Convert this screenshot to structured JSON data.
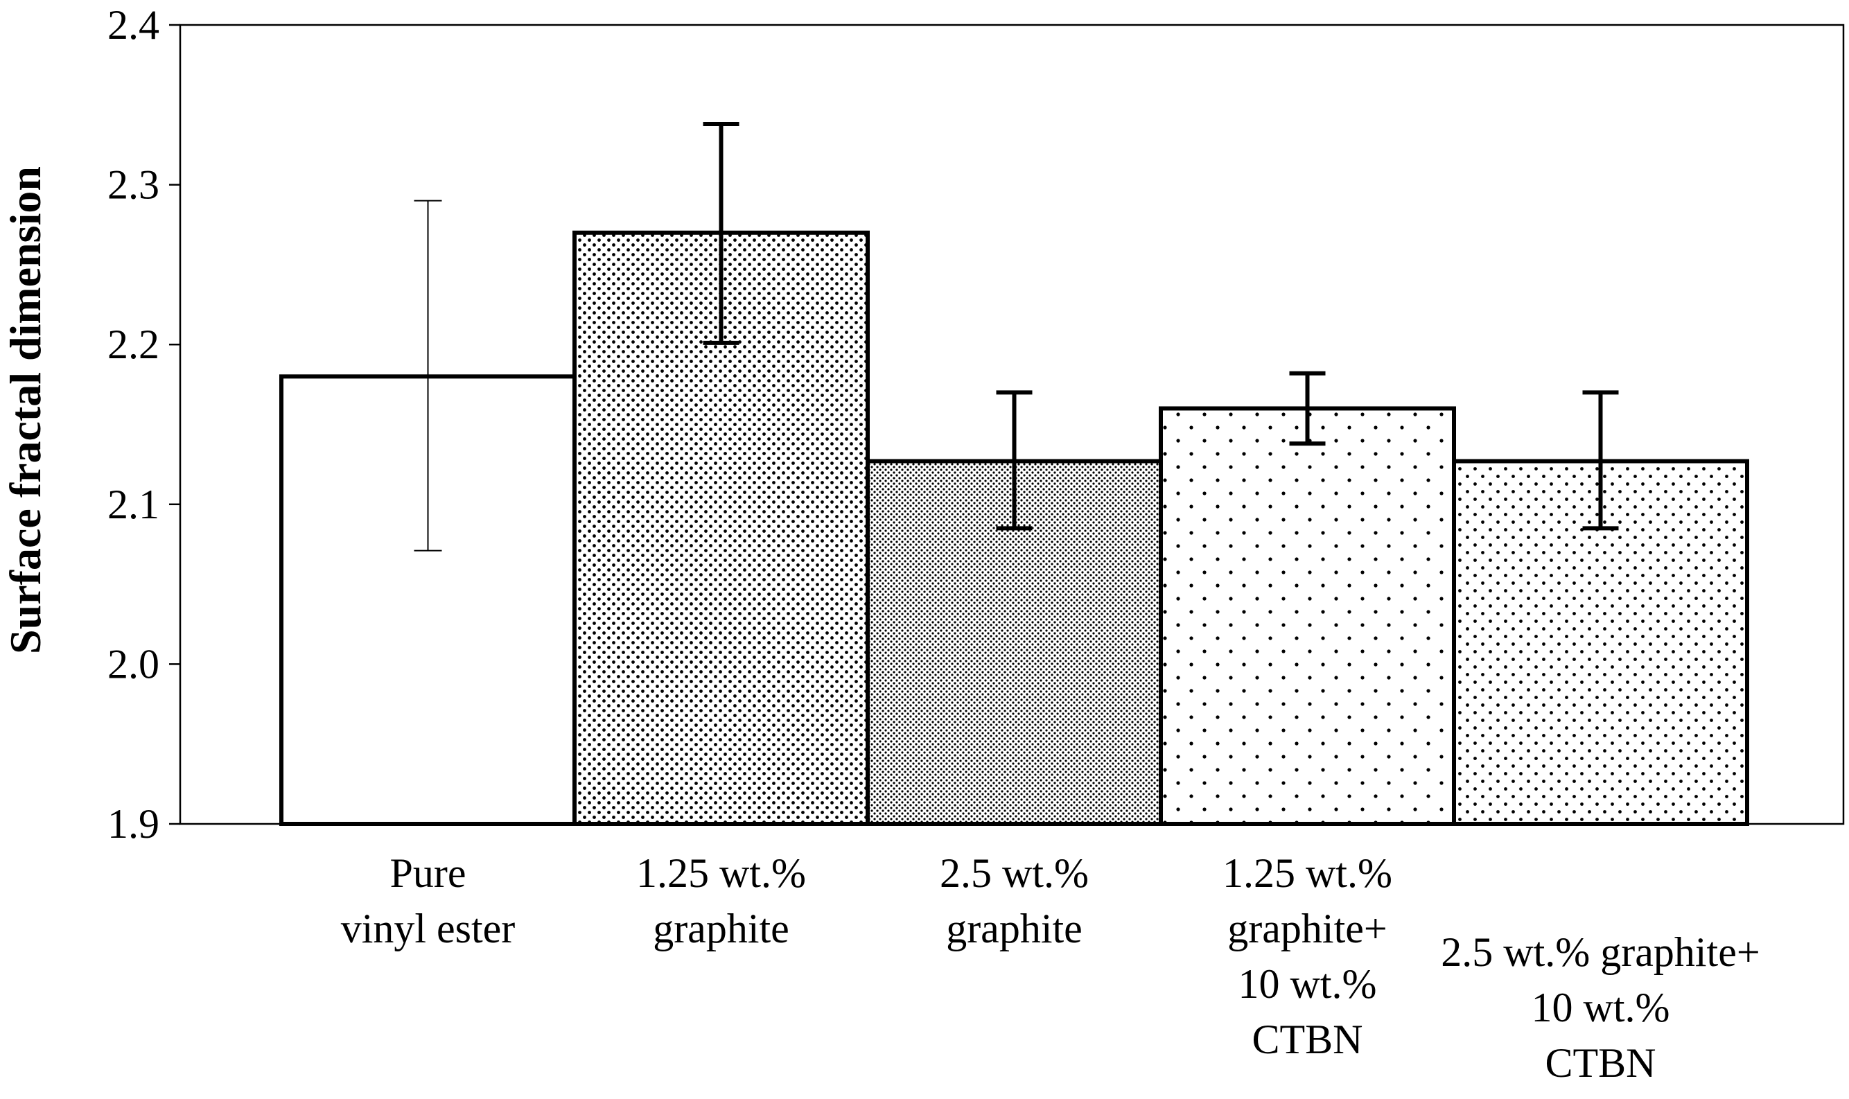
{
  "chart_data": {
    "type": "bar",
    "title": "",
    "xlabel": "",
    "ylabel": "Surface fractal dimension",
    "ylim": [
      1.9,
      2.4
    ],
    "yticks": [
      "1.9",
      "2.0",
      "2.1",
      "2.2",
      "2.3",
      "2.4"
    ],
    "grid": false,
    "legend": "none",
    "categories": [
      [
        "Pure",
        "vinyl ester"
      ],
      [
        "1.25 wt.%",
        "graphite"
      ],
      [
        "2.5 wt.%",
        "graphite"
      ],
      [
        "1.25 wt.%",
        "graphite+",
        "10 wt.%",
        "CTBN"
      ],
      [
        "2.5 wt.% graphite+",
        "10 wt.%",
        "CTBN"
      ]
    ],
    "values": [
      2.18,
      2.27,
      2.127,
      2.16,
      2.127
    ],
    "error_low": [
      2.071,
      2.201,
      2.085,
      2.138,
      2.085
    ],
    "error_high": [
      2.29,
      2.338,
      2.17,
      2.182,
      2.17
    ],
    "patterns": [
      "none",
      "dense-dots",
      "fine-dots",
      "sparse-dots",
      "medium-dots"
    ]
  }
}
